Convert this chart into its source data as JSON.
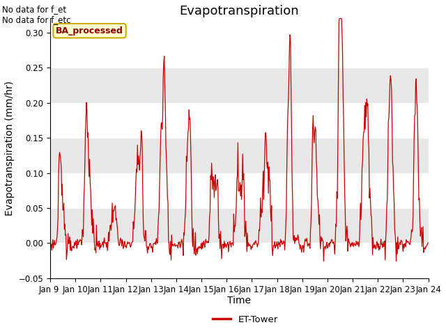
{
  "title": "Evapotranspiration",
  "ylabel": "Evapotranspiration (mm/hr)",
  "xlabel": "Time",
  "ylim": [
    -0.05,
    0.32
  ],
  "yticks": [
    -0.05,
    0.0,
    0.05,
    0.1,
    0.15,
    0.2,
    0.25,
    0.3
  ],
  "date_labels": [
    "Jan 9 ",
    "Jan 10",
    "Jan 11",
    "Jan 12",
    "Jan 13",
    "Jan 14",
    "Jan 15",
    "Jan 16",
    "Jan 17",
    "Jan 18",
    "Jan 19",
    "Jan 20",
    "Jan 21",
    "Jan 22",
    "Jan 23",
    "Jan 24"
  ],
  "annotation_top_left": "No data for f_et\nNo data for f_etc",
  "legend_label": "ET-Tower",
  "legend_box_label": "BA_processed",
  "line_color": "#cc0000",
  "legend_line_color": "#cc0000",
  "bg_color": "#ffffff",
  "bg_band_color": "#e8e8e8",
  "bg_band_ranges": [
    [
      0.0,
      0.05
    ],
    [
      0.1,
      0.15
    ],
    [
      0.2,
      0.25
    ]
  ],
  "title_fontsize": 13,
  "axis_label_fontsize": 10,
  "tick_label_fontsize": 8.5,
  "annotation_fontsize": 8.5
}
